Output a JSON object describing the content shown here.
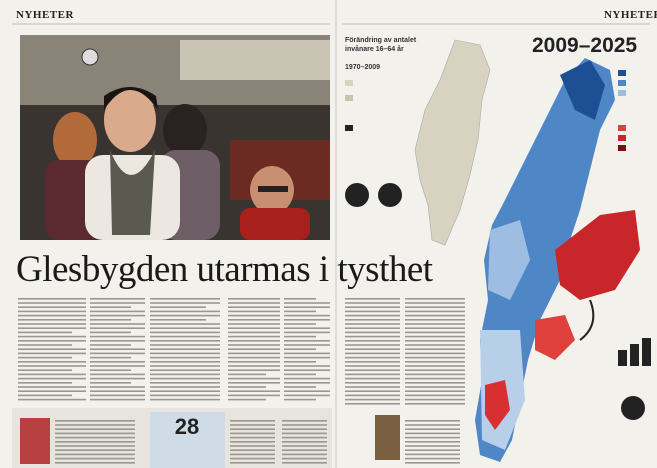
{
  "header": {
    "section_left": "NYHETER",
    "section_right": "NYHETER"
  },
  "article": {
    "headline": "Glesbygden utarmas i tysthet",
    "box_number": 28
  },
  "graphic": {
    "title": "Förändring av antalet invånare 16–64 år",
    "period_left": "1970–2009",
    "period_right": "2009–2025"
  }
}
